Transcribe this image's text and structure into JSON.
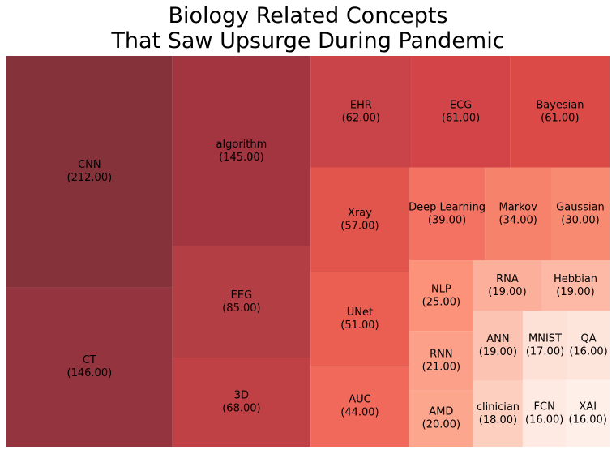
{
  "chart_data": {
    "type": "treemap",
    "title": "Biology Related Concepts\nThat Saw Upsurge During Pandemic",
    "categories": [
      "CNN",
      "CT",
      "algorithm",
      "EEG",
      "3D",
      "EHR",
      "ECG",
      "Bayesian",
      "Xray",
      "UNet",
      "AUC",
      "Deep Learning",
      "Markov",
      "Gaussian",
      "NLP",
      "RNN",
      "AMD",
      "RNA",
      "Hebbian",
      "ANN",
      "clinician",
      "MNIST",
      "QA",
      "FCN",
      "XAI"
    ],
    "values": [
      212,
      146,
      145,
      85,
      68,
      62,
      61,
      61,
      57,
      51,
      44,
      39,
      34,
      30,
      25,
      21,
      20,
      19,
      19,
      19,
      18,
      17,
      16,
      16,
      16
    ],
    "value_labels": [
      "(212.00)",
      "(146.00)",
      "(145.00)",
      "(85.00)",
      "(68.00)",
      "(62.00)",
      "(61.00)",
      "(61.00)",
      "(57.00)",
      "(51.00)",
      "(44.00)",
      "(39.00)",
      "(34.00)",
      "(30.00)",
      "(25.00)",
      "(21.00)",
      "(20.00)",
      "(19.00)",
      "(19.00)",
      "(19.00)",
      "(18.00)",
      "(17.00)",
      "(16.00)",
      "(16.00)",
      "(16.00)"
    ],
    "colors": [
      "#86323b",
      "#93343e",
      "#a33540",
      "#b33f44",
      "#bf4146",
      "#c84448",
      "#d24448",
      "#dc4a48",
      "#e2554c",
      "#eb5e52",
      "#f0695a",
      "#f37262",
      "#f7826b",
      "#f98a72",
      "#fb9279",
      "#fca08a",
      "#fca68e",
      "#fcb09b",
      "#fdb9a5",
      "#fdc3b2",
      "#fdcfbf",
      "#fde0d6",
      "#fee5dc",
      "#feeae3",
      "#feefe9"
    ]
  }
}
